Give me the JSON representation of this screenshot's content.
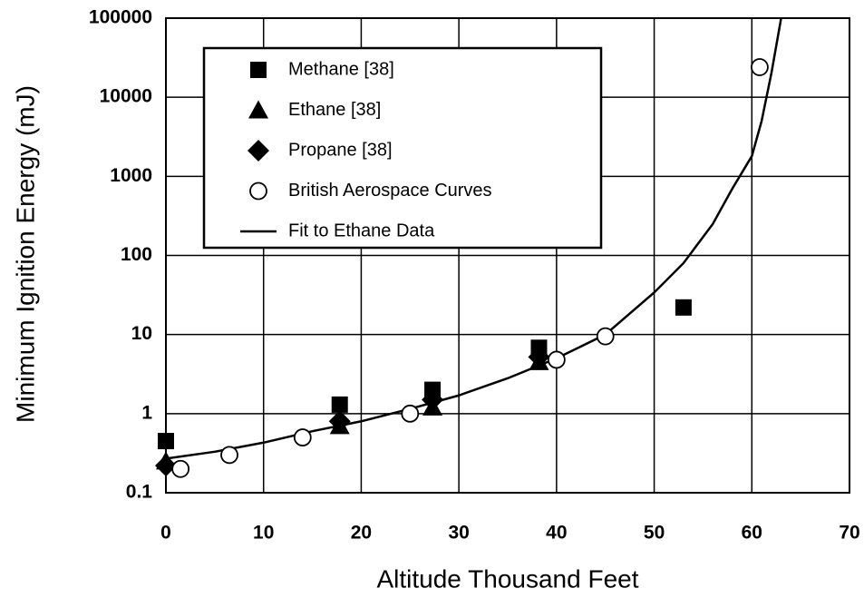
{
  "chart_data": {
    "type": "scatter",
    "x_label": "Altitude Thousand Feet",
    "y_label": "Minimum Ignition Energy (mJ)",
    "xlim": [
      0,
      70
    ],
    "xticks": [
      0,
      10,
      20,
      30,
      40,
      50,
      60,
      70
    ],
    "ylim": [
      0.1,
      100000
    ],
    "yticks": [
      0.1,
      1,
      10,
      100,
      1000,
      10000,
      100000
    ],
    "y_scale": "log",
    "grid": true,
    "legend": "upper left",
    "series": [
      {
        "name": "Methane [38]",
        "color": "#000000",
        "marker": "square",
        "x": [
          0,
          17.8,
          27.3,
          38.2,
          53
        ],
        "values": [
          0.45,
          1.3,
          2.0,
          6.8,
          22
        ]
      },
      {
        "name": "Ethane [38]",
        "color": "#000000",
        "marker": "triangle",
        "x": [
          0,
          17.8,
          27.3,
          38.2
        ],
        "values": [
          0.25,
          0.7,
          1.2,
          4.5
        ]
      },
      {
        "name": "Propane [38]",
        "color": "#000000",
        "marker": "diamond",
        "x": [
          0,
          17.8,
          27.3,
          38.2
        ],
        "values": [
          0.22,
          0.8,
          1.5,
          5.2
        ]
      },
      {
        "name": "British Aerospace Curves",
        "color": "#000000",
        "marker": "circle",
        "x": [
          1.5,
          6.5,
          14,
          25,
          40,
          45,
          60.8
        ],
        "values": [
          0.2,
          0.3,
          0.5,
          1.0,
          4.8,
          9.5,
          24000
        ]
      },
      {
        "name": "Fit to Ethane Data",
        "color": "#000000",
        "marker": "line",
        "x": [
          0,
          5,
          10,
          15,
          20,
          25,
          30,
          35,
          40,
          45,
          50,
          53,
          56,
          58,
          60,
          61,
          62,
          63
        ],
        "values": [
          0.27,
          0.33,
          0.43,
          0.6,
          0.8,
          1.15,
          1.7,
          2.8,
          5,
          10,
          34,
          80,
          250,
          700,
          1800,
          5000,
          20000,
          100000
        ]
      }
    ]
  }
}
